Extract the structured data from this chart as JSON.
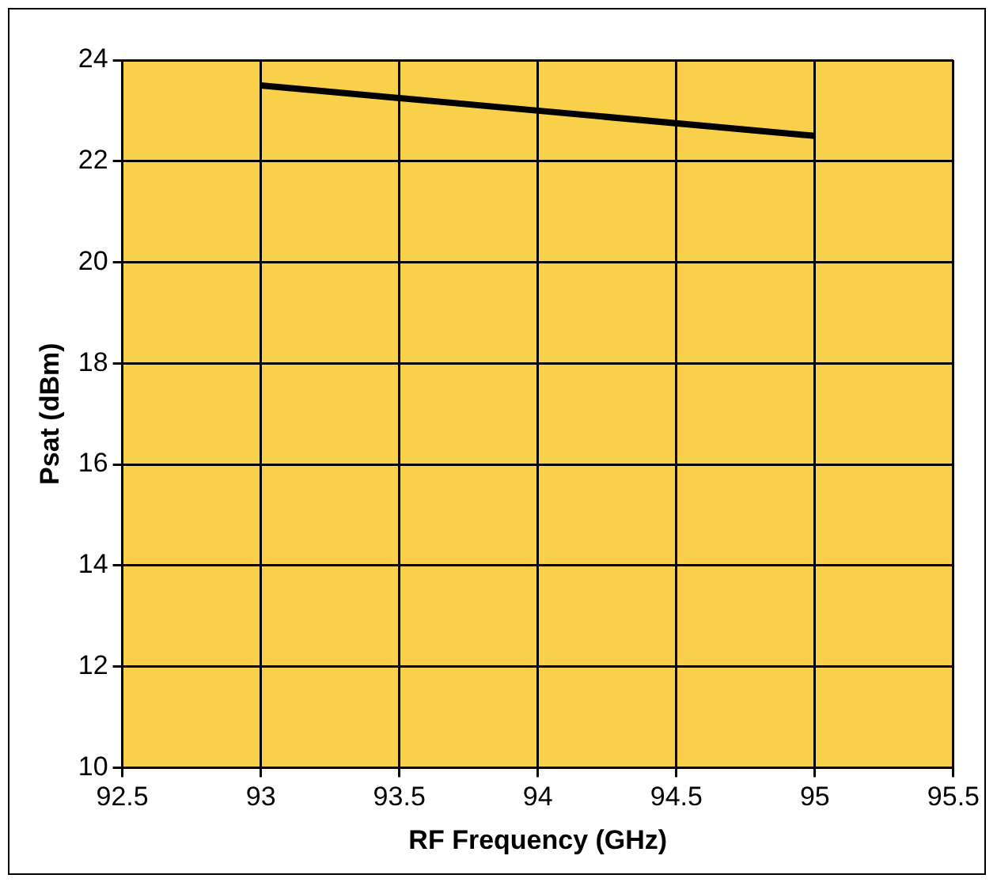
{
  "chart_data": {
    "type": "line",
    "xlabel": "RF Frequency (GHz)",
    "ylabel": "Psat (dBm)",
    "x": [
      93,
      94,
      95
    ],
    "series": [
      {
        "color": "#000000",
        "values": [
          23.5,
          23.0,
          22.5
        ]
      }
    ],
    "xlim": [
      92.5,
      95.5
    ],
    "xticks": [
      92.5,
      93,
      93.5,
      94,
      94.5,
      95,
      95.5
    ],
    "ylim": [
      10,
      24
    ],
    "yticks": [
      10,
      12,
      14,
      16,
      18,
      20,
      22,
      24
    ],
    "grid": true,
    "legend": false,
    "marker": "none",
    "line_style": "solid"
  }
}
